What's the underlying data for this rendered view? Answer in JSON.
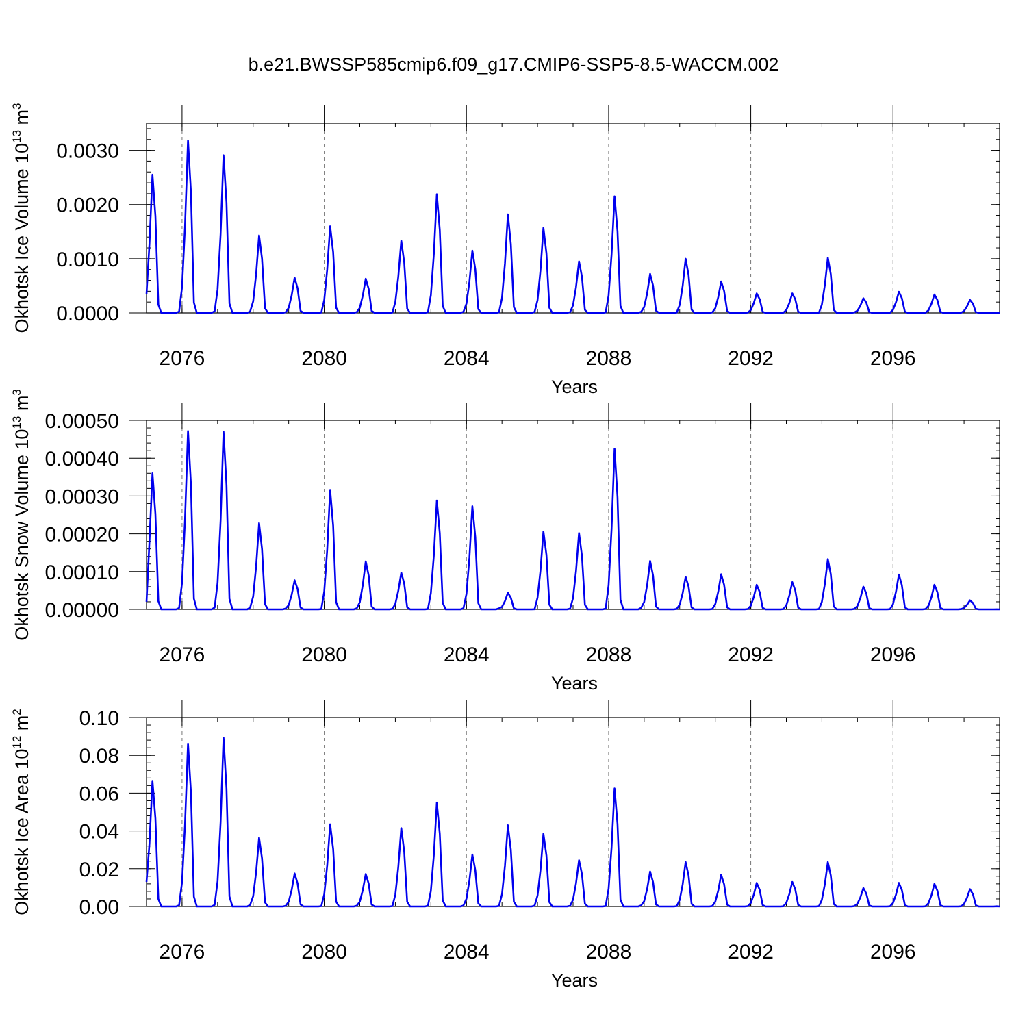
{
  "figure": {
    "title": "b.e21.BWSSP585cmip6.f09_g17.CMIP6-SSP5-8.5-WACCM.002"
  },
  "chart_data": [
    {
      "type": "line",
      "id": "ice-volume",
      "ylabel": "Okhotsk Ice Volume",
      "yunit_base": "10",
      "yunit_exp": "13",
      "yunit_tail": " m",
      "yunit_tail_exp": "3",
      "xlabel": "Years",
      "xlim": [
        2075.0,
        2099.0
      ],
      "ylim": [
        0.0,
        0.0035
      ],
      "xticks": [
        2076,
        2080,
        2084,
        2088,
        2092,
        2096
      ],
      "xtick_labels": [
        "2076",
        "2080",
        "2084",
        "2088",
        "2092",
        "2096"
      ],
      "yticks": [
        0.0,
        0.001,
        0.002,
        0.003
      ],
      "ytick_labels": [
        "0.0000",
        "0.0010",
        "0.0020",
        "0.0030"
      ],
      "gridlines_x": [
        2076,
        2080,
        2084,
        2088,
        2092,
        2096
      ],
      "line_color": "#0000ee",
      "cycles": [
        {
          "year": 2075,
          "peak": 0.00255,
          "start": 0.00035
        },
        {
          "year": 2076,
          "peak": 0.00318
        },
        {
          "year": 2077,
          "peak": 0.00291
        },
        {
          "year": 2078,
          "peak": 0.00143
        },
        {
          "year": 2079,
          "peak": 0.00065
        },
        {
          "year": 2080,
          "peak": 0.0016
        },
        {
          "year": 2081,
          "peak": 0.00063
        },
        {
          "year": 2082,
          "peak": 0.00133
        },
        {
          "year": 2083,
          "peak": 0.00219
        },
        {
          "year": 2084,
          "peak": 0.00115
        },
        {
          "year": 2085,
          "peak": 0.00182
        },
        {
          "year": 2086,
          "peak": 0.00157
        },
        {
          "year": 2087,
          "peak": 0.00095
        },
        {
          "year": 2088,
          "peak": 0.00215
        },
        {
          "year": 2089,
          "peak": 0.00072
        },
        {
          "year": 2090,
          "peak": 0.001
        },
        {
          "year": 2091,
          "peak": 0.00058
        },
        {
          "year": 2092,
          "peak": 0.00036
        },
        {
          "year": 2093,
          "peak": 0.00036
        },
        {
          "year": 2094,
          "peak": 0.00102
        },
        {
          "year": 2095,
          "peak": 0.00027
        },
        {
          "year": 2096,
          "peak": 0.00039
        },
        {
          "year": 2097,
          "peak": 0.00034
        },
        {
          "year": 2098,
          "peak": 0.00024
        }
      ]
    },
    {
      "type": "line",
      "id": "snow-volume",
      "ylabel": "Okhotsk Snow Volume",
      "yunit_base": "10",
      "yunit_exp": "13",
      "yunit_tail": " m",
      "yunit_tail_exp": "3",
      "xlabel": "Years",
      "xlim": [
        2075.0,
        2099.0
      ],
      "ylim": [
        0.0,
        0.0005
      ],
      "xticks": [
        2076,
        2080,
        2084,
        2088,
        2092,
        2096
      ],
      "xtick_labels": [
        "2076",
        "2080",
        "2084",
        "2088",
        "2092",
        "2096"
      ],
      "yticks": [
        0.0,
        0.0001,
        0.0002,
        0.0003,
        0.0004,
        0.0005
      ],
      "ytick_labels": [
        "0.00000",
        "0.00010",
        "0.00020",
        "0.00030",
        "0.00040",
        "0.00050"
      ],
      "gridlines_x": [
        2076,
        2080,
        2084,
        2088,
        2092,
        2096
      ],
      "line_color": "#0000ee",
      "cycles": [
        {
          "year": 2075,
          "peak": 0.00036,
          "start": 2e-05
        },
        {
          "year": 2076,
          "peak": 0.000472
        },
        {
          "year": 2077,
          "peak": 0.00047
        },
        {
          "year": 2078,
          "peak": 0.000228
        },
        {
          "year": 2079,
          "peak": 7.7e-05
        },
        {
          "year": 2080,
          "peak": 0.000316
        },
        {
          "year": 2081,
          "peak": 0.000127
        },
        {
          "year": 2082,
          "peak": 9.7e-05
        },
        {
          "year": 2083,
          "peak": 0.000288
        },
        {
          "year": 2084,
          "peak": 0.000273
        },
        {
          "year": 2085,
          "peak": 4.4e-05
        },
        {
          "year": 2086,
          "peak": 0.000206
        },
        {
          "year": 2087,
          "peak": 0.000202
        },
        {
          "year": 2088,
          "peak": 0.000425
        },
        {
          "year": 2089,
          "peak": 0.000128
        },
        {
          "year": 2090,
          "peak": 8.6e-05
        },
        {
          "year": 2091,
          "peak": 9.3e-05
        },
        {
          "year": 2092,
          "peak": 6.5e-05
        },
        {
          "year": 2093,
          "peak": 7.2e-05
        },
        {
          "year": 2094,
          "peak": 0.000133
        },
        {
          "year": 2095,
          "peak": 6e-05
        },
        {
          "year": 2096,
          "peak": 9.2e-05
        },
        {
          "year": 2097,
          "peak": 6.5e-05
        },
        {
          "year": 2098,
          "peak": 2.4e-05
        }
      ]
    },
    {
      "type": "line",
      "id": "ice-area",
      "ylabel": "Okhotsk Ice Area",
      "yunit_base": "10",
      "yunit_exp": "12",
      "yunit_tail": " m",
      "yunit_tail_exp": "2",
      "xlabel": "Years",
      "xlim": [
        2075.0,
        2099.0
      ],
      "ylim": [
        0.0,
        0.1
      ],
      "xticks": [
        2076,
        2080,
        2084,
        2088,
        2092,
        2096
      ],
      "xtick_labels": [
        "2076",
        "2080",
        "2084",
        "2088",
        "2092",
        "2096"
      ],
      "yticks": [
        0.0,
        0.02,
        0.04,
        0.06,
        0.08,
        0.1
      ],
      "ytick_labels": [
        "0.00",
        "0.02",
        "0.04",
        "0.06",
        "0.08",
        "0.10"
      ],
      "gridlines_x": [
        2076,
        2080,
        2084,
        2088,
        2092,
        2096
      ],
      "line_color": "#0000ee",
      "cycles": [
        {
          "year": 2075,
          "peak": 0.0665,
          "start": 0.013
        },
        {
          "year": 2076,
          "peak": 0.0862
        },
        {
          "year": 2077,
          "peak": 0.0893
        },
        {
          "year": 2078,
          "peak": 0.0364
        },
        {
          "year": 2079,
          "peak": 0.0175
        },
        {
          "year": 2080,
          "peak": 0.0435
        },
        {
          "year": 2081,
          "peak": 0.0172
        },
        {
          "year": 2082,
          "peak": 0.0415
        },
        {
          "year": 2083,
          "peak": 0.055
        },
        {
          "year": 2084,
          "peak": 0.0275
        },
        {
          "year": 2085,
          "peak": 0.043
        },
        {
          "year": 2086,
          "peak": 0.0385
        },
        {
          "year": 2087,
          "peak": 0.0245
        },
        {
          "year": 2088,
          "peak": 0.0625
        },
        {
          "year": 2089,
          "peak": 0.0185
        },
        {
          "year": 2090,
          "peak": 0.0235
        },
        {
          "year": 2091,
          "peak": 0.0168
        },
        {
          "year": 2092,
          "peak": 0.0125
        },
        {
          "year": 2093,
          "peak": 0.013
        },
        {
          "year": 2094,
          "peak": 0.0235
        },
        {
          "year": 2095,
          "peak": 0.0098
        },
        {
          "year": 2096,
          "peak": 0.0125
        },
        {
          "year": 2097,
          "peak": 0.012
        },
        {
          "year": 2098,
          "peak": 0.0092
        }
      ]
    }
  ]
}
